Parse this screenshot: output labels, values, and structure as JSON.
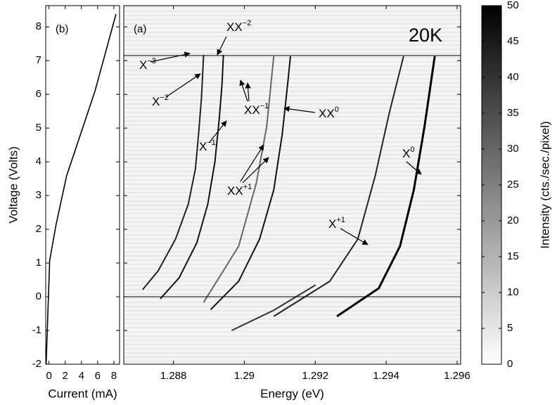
{
  "chart_data": [
    {
      "type": "line",
      "label": "(b)",
      "xlabel": "Current (mA)",
      "ylabel": "Voltage (Volts)",
      "x": [
        -0.35,
        -0.09,
        0.09,
        0.87,
        2.17,
        3.91,
        5.65,
        6.96,
        8.26
      ],
      "values": [
        -2,
        -0.17,
        1.08,
        2.13,
        3.58,
        4.83,
        6.08,
        7.23,
        8.38
      ],
      "color": "#000000",
      "xlim": [
        -0.4,
        8.7
      ],
      "ylim": [
        -2,
        8.63
      ],
      "xticks": [
        0,
        2,
        4,
        6,
        8
      ],
      "yticks": [
        -2,
        -1,
        0,
        1,
        2,
        3,
        4,
        5,
        6,
        7,
        8
      ]
    },
    {
      "type": "spectrum",
      "label": "(a)",
      "title": "20K",
      "xlabel": "Energy (eV)",
      "xlim": [
        1.2866,
        1.2961
      ],
      "ylim": [
        -2,
        8.63
      ],
      "xticks": [
        1.288,
        1.29,
        1.292,
        1.294,
        1.296
      ],
      "hlines": [
        0,
        7.15
      ],
      "series": [
        {
          "color": "#222222",
          "x": [
            1.28713,
            1.28757,
            1.28806,
            1.28842,
            1.28862,
            1.28871,
            1.28879,
            1.28883,
            1.28885
          ],
          "values": [
            0.21,
            0.77,
            1.71,
            2.75,
            3.79,
            4.83,
            5.88,
            6.71,
            7.17
          ]
        },
        {
          "color": "#111111",
          "x": [
            1.28763,
            1.28816,
            1.28866,
            1.28897,
            1.28917,
            1.28929,
            1.28937,
            1.28941
          ],
          "values": [
            -0.06,
            0.56,
            1.6,
            2.75,
            4.0,
            5.25,
            6.29,
            7.17
          ]
        },
        {
          "color": "#666666",
          "x": [
            1.28885,
            1.28984,
            1.29034,
            1.29063,
            1.29083
          ],
          "values": [
            -0.17,
            1.5,
            3.38,
            5.04,
            7.13
          ]
        },
        {
          "color": "#111111",
          "x": [
            1.28905,
            1.28984,
            1.29043,
            1.29083,
            1.29107,
            1.29122,
            1.2913
          ],
          "values": [
            -0.38,
            0.46,
            1.71,
            3.17,
            4.83,
            6.29,
            7.13
          ]
        },
        {
          "color": "#222222",
          "x": [
            1.29083,
            1.29241,
            1.2932,
            1.29369,
            1.29409,
            1.29449
          ],
          "values": [
            -0.58,
            0.46,
            1.71,
            3.58,
            5.46,
            7.13
          ]
        },
        {
          "color": "#000000",
          "x": [
            1.29261,
            1.29379,
            1.29439,
            1.29478,
            1.29508,
            1.29537
          ],
          "values": [
            -0.58,
            0.25,
            1.5,
            3.17,
            5.04,
            7.13
          ]
        },
        {
          "color": "#333333",
          "x": [
            1.28964,
            1.29083,
            1.29201
          ],
          "values": [
            -1,
            -0.4,
            0.35
          ]
        }
      ],
      "annotations": [
        {
          "text": "X",
          "sup": "−3"
        },
        {
          "text": "X",
          "sup": "−2"
        },
        {
          "text": "XX",
          "sup": "−2"
        },
        {
          "text": "XX",
          "sup": "−1"
        },
        {
          "text": "XX",
          "sup": "0"
        },
        {
          "text": "X",
          "sup": "−1"
        },
        {
          "text": "XX",
          "sup": "+1"
        },
        {
          "text": "X",
          "sup": "+1"
        },
        {
          "text": "X",
          "sup": "0"
        }
      ]
    },
    {
      "type": "colorbar",
      "label": "Intensity (cts./sec./pixel)",
      "lim": [
        0,
        50
      ],
      "ticks": [
        0,
        5,
        10,
        15,
        20,
        25,
        30,
        35,
        40,
        45,
        50
      ],
      "colors": [
        "#ffffff",
        "#000000"
      ]
    }
  ]
}
